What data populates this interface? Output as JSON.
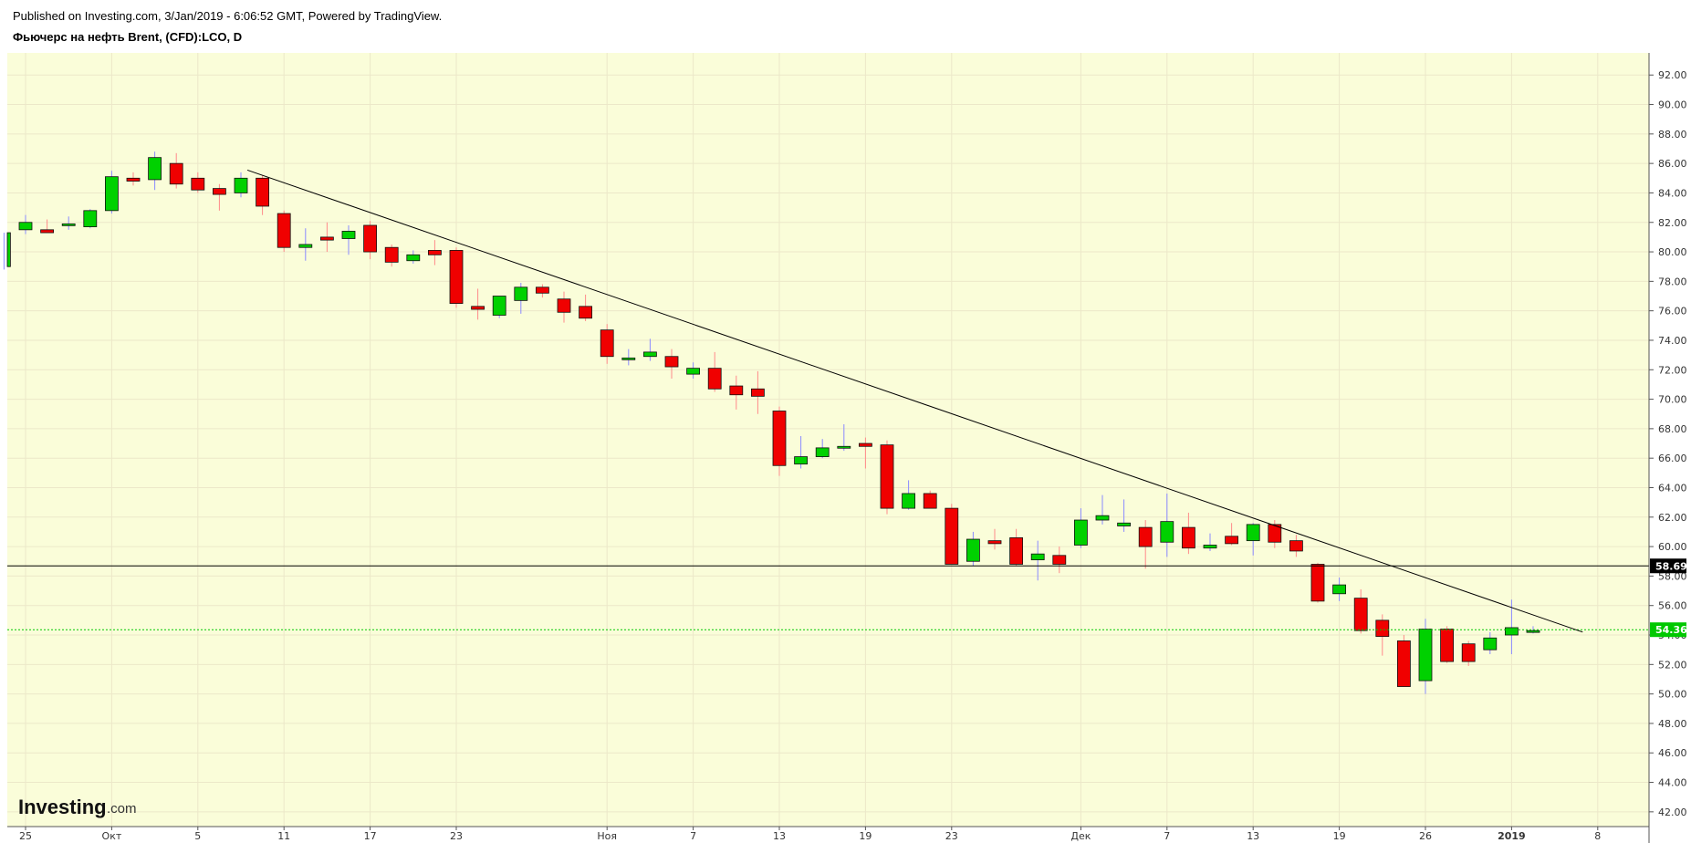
{
  "header": {
    "published": "Published on Investing.com, 3/Jan/2019 - 6:06:52 GMT, Powered by TradingView.",
    "instrument": "Фьючерс на нефть Brent, (CFD):LCO, D"
  },
  "logo": {
    "main": "Investing",
    "suffix": ".com"
  },
  "colors": {
    "plot_bg": "#fafdd9",
    "grid": "#ece8c9",
    "up": "#00d100",
    "down": "#f00000",
    "wick_up": "#8a8aff",
    "wick_down": "#ff8a8a",
    "border": "#111111",
    "support_line": "#000000",
    "last_price": "#00c800"
  },
  "chart_data": {
    "type": "candlestick",
    "timeframe": "D",
    "ylim": [
      41,
      93.5
    ],
    "y_ticks": [
      "42.00",
      "44.00",
      "46.00",
      "48.00",
      "50.00",
      "52.00",
      "54.00",
      "56.00",
      "58.00",
      "60.00",
      "62.00",
      "64.00",
      "66.00",
      "68.00",
      "70.00",
      "72.00",
      "74.00",
      "76.00",
      "78.00",
      "80.00",
      "82.00",
      "84.00",
      "86.00",
      "88.00",
      "90.00",
      "92.00"
    ],
    "x_ticks": [
      {
        "label": "25",
        "index": 0
      },
      {
        "label": "Окт",
        "index": 4,
        "bold": false
      },
      {
        "label": "5",
        "index": 8
      },
      {
        "label": "11",
        "index": 12
      },
      {
        "label": "17",
        "index": 16
      },
      {
        "label": "23",
        "index": 20
      },
      {
        "label": "Ноя",
        "index": 27
      },
      {
        "label": "7",
        "index": 31
      },
      {
        "label": "13",
        "index": 35
      },
      {
        "label": "19",
        "index": 39
      },
      {
        "label": "23",
        "index": 43
      },
      {
        "label": "Дек",
        "index": 49
      },
      {
        "label": "7",
        "index": 53
      },
      {
        "label": "13",
        "index": 57
      },
      {
        "label": "19",
        "index": 61
      },
      {
        "label": "26",
        "index": 65
      },
      {
        "label": "2019",
        "index": 69,
        "bold": true
      },
      {
        "label": "8",
        "index": 73
      }
    ],
    "candles": [
      {
        "o": 81.5,
        "h": 82.5,
        "l": 81.2,
        "c": 82.0
      },
      {
        "o": 81.5,
        "h": 82.2,
        "l": 81.3,
        "c": 81.3
      },
      {
        "o": 81.8,
        "h": 82.4,
        "l": 81.5,
        "c": 81.9
      },
      {
        "o": 81.7,
        "h": 82.9,
        "l": 81.6,
        "c": 82.8
      },
      {
        "o": 82.8,
        "h": 85.5,
        "l": 82.6,
        "c": 85.1
      },
      {
        "o": 85.0,
        "h": 85.4,
        "l": 84.5,
        "c": 84.8
      },
      {
        "o": 84.9,
        "h": 86.8,
        "l": 84.2,
        "c": 86.4
      },
      {
        "o": 86.0,
        "h": 86.7,
        "l": 84.3,
        "c": 84.6
      },
      {
        "o": 85.0,
        "h": 85.4,
        "l": 84.0,
        "c": 84.2
      },
      {
        "o": 84.3,
        "h": 84.6,
        "l": 82.8,
        "c": 83.9
      },
      {
        "o": 84.0,
        "h": 85.4,
        "l": 83.7,
        "c": 85.0
      },
      {
        "o": 85.0,
        "h": 85.2,
        "l": 82.5,
        "c": 83.1
      },
      {
        "o": 82.6,
        "h": 82.8,
        "l": 80.0,
        "c": 80.3
      },
      {
        "o": 80.3,
        "h": 81.6,
        "l": 79.4,
        "c": 80.5
      },
      {
        "o": 81.0,
        "h": 82.0,
        "l": 80.0,
        "c": 80.8
      },
      {
        "o": 80.9,
        "h": 81.8,
        "l": 79.8,
        "c": 81.4
      },
      {
        "o": 81.8,
        "h": 82.1,
        "l": 79.5,
        "c": 80.0
      },
      {
        "o": 80.3,
        "h": 80.5,
        "l": 79.0,
        "c": 79.3
      },
      {
        "o": 79.4,
        "h": 80.1,
        "l": 79.2,
        "c": 79.8
      },
      {
        "o": 80.1,
        "h": 80.8,
        "l": 79.1,
        "c": 79.8
      },
      {
        "o": 80.1,
        "h": 80.3,
        "l": 76.2,
        "c": 76.5
      },
      {
        "o": 76.3,
        "h": 77.5,
        "l": 75.4,
        "c": 76.1
      },
      {
        "o": 75.7,
        "h": 76.9,
        "l": 75.5,
        "c": 77.0
      },
      {
        "o": 76.7,
        "h": 77.9,
        "l": 75.8,
        "c": 77.6
      },
      {
        "o": 77.6,
        "h": 77.8,
        "l": 76.9,
        "c": 77.2
      },
      {
        "o": 76.8,
        "h": 77.3,
        "l": 75.2,
        "c": 75.9
      },
      {
        "o": 76.3,
        "h": 77.1,
        "l": 75.3,
        "c": 75.5
      },
      {
        "o": 74.7,
        "h": 75.1,
        "l": 72.4,
        "c": 72.9
      },
      {
        "o": 72.8,
        "h": 73.4,
        "l": 72.3,
        "c": 72.8
      },
      {
        "o": 72.9,
        "h": 74.1,
        "l": 72.6,
        "c": 73.2
      },
      {
        "o": 72.9,
        "h": 73.4,
        "l": 71.4,
        "c": 72.2
      },
      {
        "o": 71.7,
        "h": 72.5,
        "l": 71.4,
        "c": 72.1
      },
      {
        "o": 72.1,
        "h": 73.2,
        "l": 70.5,
        "c": 70.7
      },
      {
        "o": 70.9,
        "h": 71.6,
        "l": 69.3,
        "c": 70.3
      },
      {
        "o": 70.7,
        "h": 71.9,
        "l": 69.0,
        "c": 70.2
      },
      {
        "o": 69.2,
        "h": 69.5,
        "l": 64.8,
        "c": 65.5
      },
      {
        "o": 65.6,
        "h": 67.5,
        "l": 65.3,
        "c": 66.1
      },
      {
        "o": 66.1,
        "h": 67.3,
        "l": 66.0,
        "c": 66.7
      },
      {
        "o": 66.7,
        "h": 68.3,
        "l": 66.5,
        "c": 66.8
      },
      {
        "o": 67.0,
        "h": 67.4,
        "l": 65.3,
        "c": 66.8
      },
      {
        "o": 66.9,
        "h": 67.2,
        "l": 62.2,
        "c": 62.6
      },
      {
        "o": 62.6,
        "h": 64.5,
        "l": 62.5,
        "c": 63.6
      },
      {
        "o": 63.6,
        "h": 63.8,
        "l": 62.6,
        "c": 62.6
      },
      {
        "o": 62.6,
        "h": 62.9,
        "l": 58.8,
        "c": 58.8
      },
      {
        "o": 59.0,
        "h": 61.0,
        "l": 58.7,
        "c": 60.5
      },
      {
        "o": 60.4,
        "h": 61.2,
        "l": 59.8,
        "c": 60.2
      },
      {
        "o": 60.6,
        "h": 61.2,
        "l": 58.7,
        "c": 58.8
      },
      {
        "o": 59.1,
        "h": 60.4,
        "l": 57.7,
        "c": 59.5
      },
      {
        "o": 59.4,
        "h": 60.0,
        "l": 58.2,
        "c": 58.8
      },
      {
        "o": 60.1,
        "h": 62.6,
        "l": 59.9,
        "c": 61.8
      },
      {
        "o": 61.8,
        "h": 63.5,
        "l": 61.5,
        "c": 62.1
      },
      {
        "o": 61.4,
        "h": 63.2,
        "l": 61.0,
        "c": 61.6
      },
      {
        "o": 61.3,
        "h": 61.8,
        "l": 58.5,
        "c": 60.0
      },
      {
        "o": 60.3,
        "h": 63.6,
        "l": 59.3,
        "c": 61.7
      },
      {
        "o": 61.3,
        "h": 62.3,
        "l": 59.5,
        "c": 59.9
      },
      {
        "o": 59.9,
        "h": 60.9,
        "l": 59.7,
        "c": 60.1
      },
      {
        "o": 60.7,
        "h": 61.6,
        "l": 60.1,
        "c": 60.2
      },
      {
        "o": 60.4,
        "h": 61.6,
        "l": 59.4,
        "c": 61.5
      },
      {
        "o": 61.5,
        "h": 61.8,
        "l": 59.9,
        "c": 60.3
      },
      {
        "o": 60.4,
        "h": 60.8,
        "l": 59.3,
        "c": 59.7
      },
      {
        "o": 58.8,
        "h": 58.9,
        "l": 56.2,
        "c": 56.3
      },
      {
        "o": 56.8,
        "h": 57.9,
        "l": 56.3,
        "c": 57.4
      },
      {
        "o": 56.5,
        "h": 57.1,
        "l": 54.1,
        "c": 54.3
      },
      {
        "o": 55.0,
        "h": 55.4,
        "l": 52.6,
        "c": 53.9
      },
      {
        "o": 53.6,
        "h": 54.0,
        "l": 50.5,
        "c": 50.5
      },
      {
        "o": 50.9,
        "h": 55.1,
        "l": 50.0,
        "c": 54.4
      },
      {
        "o": 54.4,
        "h": 54.6,
        "l": 52.1,
        "c": 52.2
      },
      {
        "o": 53.4,
        "h": 53.6,
        "l": 51.9,
        "c": 52.2
      },
      {
        "o": 53.0,
        "h": 54.2,
        "l": 52.7,
        "c": 53.8
      },
      {
        "o": 54.0,
        "h": 56.4,
        "l": 52.7,
        "c": 54.5
      },
      {
        "o": 54.3,
        "h": 54.6,
        "l": 54.1,
        "c": 54.3
      }
    ],
    "partial_candle_left": {
      "o": 79.0,
      "h": 81.3,
      "l": 78.8,
      "c": 81.3
    },
    "support_line": {
      "price": 58.69,
      "label": "58.69"
    },
    "last_price": {
      "price": 54.36,
      "label": "54.36"
    },
    "trend_line": {
      "from": {
        "index": 10.3,
        "price": 85.55
      },
      "to": {
        "index": 72.3,
        "price": 54.2
      }
    }
  }
}
